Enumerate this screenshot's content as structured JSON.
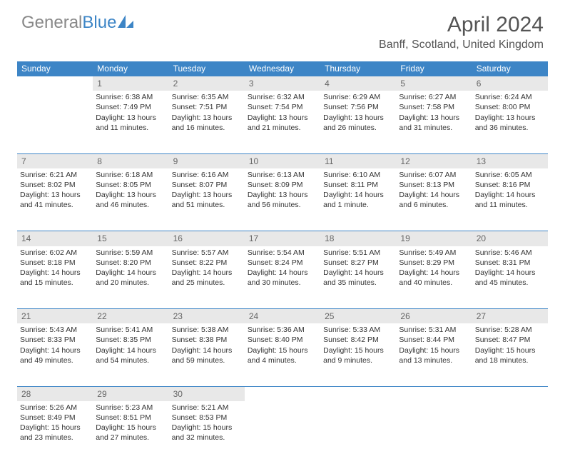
{
  "logo": {
    "text_gray": "General",
    "text_blue": "Blue"
  },
  "title": "April 2024",
  "location": "Banff, Scotland, United Kingdom",
  "colors": {
    "header_bg": "#3d85c6",
    "header_text": "#ffffff",
    "daynum_bg": "#e8e8e8",
    "daynum_text": "#666666",
    "body_text": "#333333",
    "page_bg": "#ffffff",
    "row_border": "#3d85c6"
  },
  "typography": {
    "title_fontsize": 30,
    "location_fontsize": 16,
    "dayheader_fontsize": 12,
    "cell_fontsize": 10.5
  },
  "day_headers": [
    "Sunday",
    "Monday",
    "Tuesday",
    "Wednesday",
    "Thursday",
    "Friday",
    "Saturday"
  ],
  "weeks": [
    {
      "nums": [
        "",
        "1",
        "2",
        "3",
        "4",
        "5",
        "6"
      ],
      "cells": [
        [],
        [
          "Sunrise: 6:38 AM",
          "Sunset: 7:49 PM",
          "Daylight: 13 hours",
          "and 11 minutes."
        ],
        [
          "Sunrise: 6:35 AM",
          "Sunset: 7:51 PM",
          "Daylight: 13 hours",
          "and 16 minutes."
        ],
        [
          "Sunrise: 6:32 AM",
          "Sunset: 7:54 PM",
          "Daylight: 13 hours",
          "and 21 minutes."
        ],
        [
          "Sunrise: 6:29 AM",
          "Sunset: 7:56 PM",
          "Daylight: 13 hours",
          "and 26 minutes."
        ],
        [
          "Sunrise: 6:27 AM",
          "Sunset: 7:58 PM",
          "Daylight: 13 hours",
          "and 31 minutes."
        ],
        [
          "Sunrise: 6:24 AM",
          "Sunset: 8:00 PM",
          "Daylight: 13 hours",
          "and 36 minutes."
        ]
      ]
    },
    {
      "nums": [
        "7",
        "8",
        "9",
        "10",
        "11",
        "12",
        "13"
      ],
      "cells": [
        [
          "Sunrise: 6:21 AM",
          "Sunset: 8:02 PM",
          "Daylight: 13 hours",
          "and 41 minutes."
        ],
        [
          "Sunrise: 6:18 AM",
          "Sunset: 8:05 PM",
          "Daylight: 13 hours",
          "and 46 minutes."
        ],
        [
          "Sunrise: 6:16 AM",
          "Sunset: 8:07 PM",
          "Daylight: 13 hours",
          "and 51 minutes."
        ],
        [
          "Sunrise: 6:13 AM",
          "Sunset: 8:09 PM",
          "Daylight: 13 hours",
          "and 56 minutes."
        ],
        [
          "Sunrise: 6:10 AM",
          "Sunset: 8:11 PM",
          "Daylight: 14 hours",
          "and 1 minute."
        ],
        [
          "Sunrise: 6:07 AM",
          "Sunset: 8:13 PM",
          "Daylight: 14 hours",
          "and 6 minutes."
        ],
        [
          "Sunrise: 6:05 AM",
          "Sunset: 8:16 PM",
          "Daylight: 14 hours",
          "and 11 minutes."
        ]
      ]
    },
    {
      "nums": [
        "14",
        "15",
        "16",
        "17",
        "18",
        "19",
        "20"
      ],
      "cells": [
        [
          "Sunrise: 6:02 AM",
          "Sunset: 8:18 PM",
          "Daylight: 14 hours",
          "and 15 minutes."
        ],
        [
          "Sunrise: 5:59 AM",
          "Sunset: 8:20 PM",
          "Daylight: 14 hours",
          "and 20 minutes."
        ],
        [
          "Sunrise: 5:57 AM",
          "Sunset: 8:22 PM",
          "Daylight: 14 hours",
          "and 25 minutes."
        ],
        [
          "Sunrise: 5:54 AM",
          "Sunset: 8:24 PM",
          "Daylight: 14 hours",
          "and 30 minutes."
        ],
        [
          "Sunrise: 5:51 AM",
          "Sunset: 8:27 PM",
          "Daylight: 14 hours",
          "and 35 minutes."
        ],
        [
          "Sunrise: 5:49 AM",
          "Sunset: 8:29 PM",
          "Daylight: 14 hours",
          "and 40 minutes."
        ],
        [
          "Sunrise: 5:46 AM",
          "Sunset: 8:31 PM",
          "Daylight: 14 hours",
          "and 45 minutes."
        ]
      ]
    },
    {
      "nums": [
        "21",
        "22",
        "23",
        "24",
        "25",
        "26",
        "27"
      ],
      "cells": [
        [
          "Sunrise: 5:43 AM",
          "Sunset: 8:33 PM",
          "Daylight: 14 hours",
          "and 49 minutes."
        ],
        [
          "Sunrise: 5:41 AM",
          "Sunset: 8:35 PM",
          "Daylight: 14 hours",
          "and 54 minutes."
        ],
        [
          "Sunrise: 5:38 AM",
          "Sunset: 8:38 PM",
          "Daylight: 14 hours",
          "and 59 minutes."
        ],
        [
          "Sunrise: 5:36 AM",
          "Sunset: 8:40 PM",
          "Daylight: 15 hours",
          "and 4 minutes."
        ],
        [
          "Sunrise: 5:33 AM",
          "Sunset: 8:42 PM",
          "Daylight: 15 hours",
          "and 9 minutes."
        ],
        [
          "Sunrise: 5:31 AM",
          "Sunset: 8:44 PM",
          "Daylight: 15 hours",
          "and 13 minutes."
        ],
        [
          "Sunrise: 5:28 AM",
          "Sunset: 8:47 PM",
          "Daylight: 15 hours",
          "and 18 minutes."
        ]
      ]
    },
    {
      "nums": [
        "28",
        "29",
        "30",
        "",
        "",
        "",
        ""
      ],
      "cells": [
        [
          "Sunrise: 5:26 AM",
          "Sunset: 8:49 PM",
          "Daylight: 15 hours",
          "and 23 minutes."
        ],
        [
          "Sunrise: 5:23 AM",
          "Sunset: 8:51 PM",
          "Daylight: 15 hours",
          "and 27 minutes."
        ],
        [
          "Sunrise: 5:21 AM",
          "Sunset: 8:53 PM",
          "Daylight: 15 hours",
          "and 32 minutes."
        ],
        [],
        [],
        [],
        []
      ]
    }
  ]
}
